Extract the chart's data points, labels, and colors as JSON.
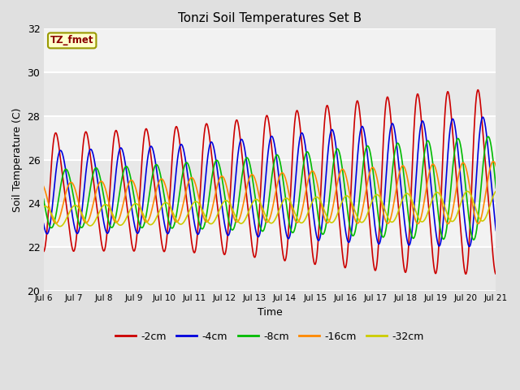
{
  "title": "Tonzi Soil Temperatures Set B",
  "xlabel": "Time",
  "ylabel": "Soil Temperature (C)",
  "annotation": "TZ_fmet",
  "ylim": [
    20,
    32
  ],
  "xlim": [
    6,
    21
  ],
  "series_colors": {
    "-2cm": "#CC0000",
    "-4cm": "#0000DD",
    "-8cm": "#00BB00",
    "-16cm": "#FF8800",
    "-32cm": "#CCCC00"
  },
  "legend_order": [
    "-2cm",
    "-4cm",
    "-8cm",
    "-16cm",
    "-32cm"
  ],
  "background_color": "#E0E0E0",
  "plot_bg_color": "#F2F2F2",
  "grid_color": "#FFFFFF",
  "tick_positions": [
    6,
    7,
    8,
    9,
    10,
    11,
    12,
    13,
    14,
    15,
    16,
    17,
    18,
    19,
    20,
    21
  ],
  "tick_labels": [
    "Jul 6",
    "Jul 7",
    "Jul 8",
    "Jul 9",
    "Jul 10",
    "Jul 11",
    "Jul 12",
    "Jul 13",
    "Jul 14",
    "Jul 15",
    "Jul 16",
    "Jul 17",
    "Jul 18",
    "Jul 19",
    "Jul 20",
    "Jul 21"
  ],
  "ytick_positions": [
    20,
    22,
    24,
    26,
    28,
    30,
    32
  ],
  "linewidth": 1.2,
  "n_points": 2000,
  "series_params": {
    "-2cm": {
      "base_amp": 3.0,
      "peak_amp": 4.8,
      "mean": 24.5,
      "phase": 0.2,
      "peak_day": 14.5,
      "transition": 2.0,
      "skew": 0.6
    },
    "-4cm": {
      "base_amp": 2.0,
      "peak_amp": 3.3,
      "mean": 24.5,
      "phase": 0.34,
      "peak_day": 14.8,
      "transition": 2.5,
      "skew": 0.3
    },
    "-8cm": {
      "base_amp": 1.3,
      "peak_amp": 2.6,
      "mean": 24.2,
      "phase": 0.5,
      "peak_day": 15.0,
      "transition": 3.0,
      "skew": 0.1
    },
    "-16cm": {
      "base_amp": 0.9,
      "peak_amp": 1.5,
      "mean": 24.0,
      "phase": 0.66,
      "peak_day": 15.2,
      "transition": 3.0,
      "skew": 0.0
    },
    "-32cm": {
      "base_amp": 0.45,
      "peak_amp": 0.75,
      "mean": 23.4,
      "phase": 0.8,
      "peak_day": 15.5,
      "transition": 3.5,
      "skew": 0.0
    }
  }
}
